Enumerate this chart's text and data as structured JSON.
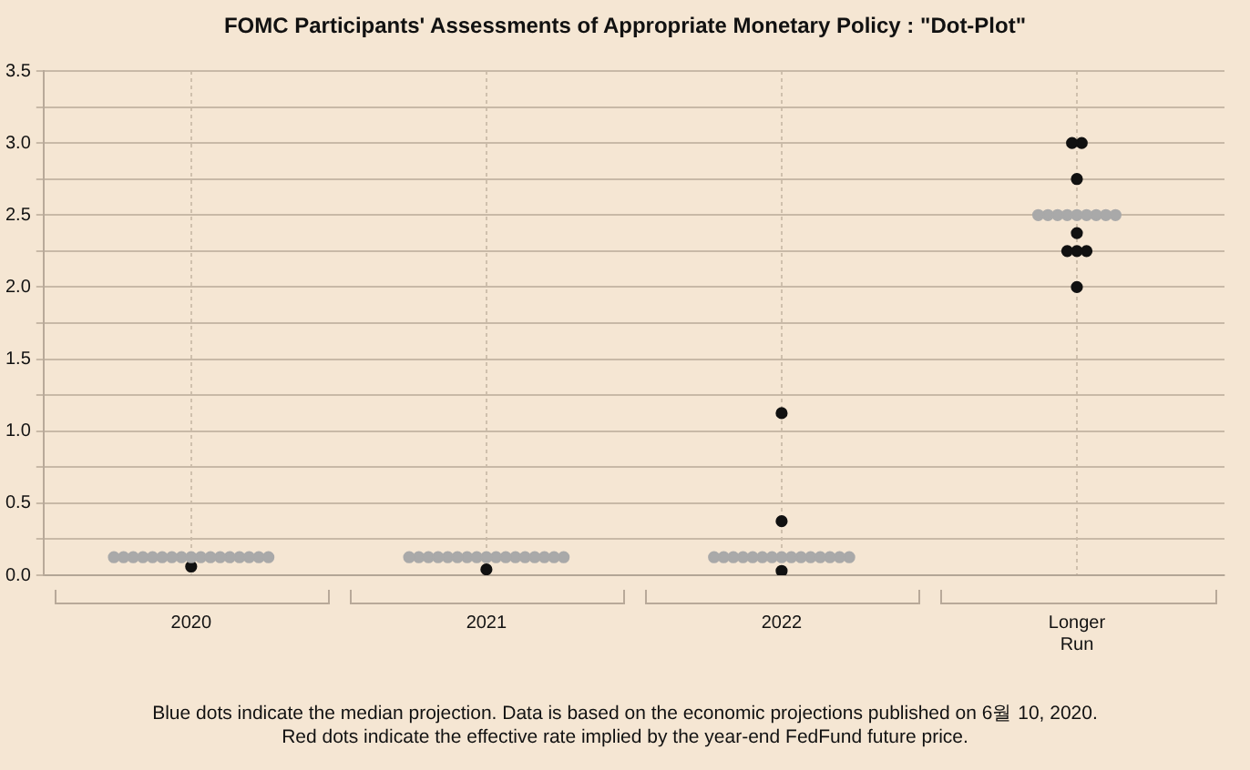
{
  "chart_data": {
    "type": "scatter",
    "title": "FOMC Participants' Assessments of Appropriate Monetary Policy : \"Dot-Plot\"",
    "categories": [
      "2020",
      "2021",
      "2022",
      "Longer Run"
    ],
    "series": [
      {
        "color": "#a9a9a9",
        "values": [
          0.125,
          0.125,
          0.125,
          2.5
        ]
      },
      {
        "color": "#a9a9a9",
        "values": [
          0.125,
          0.125,
          0.125,
          2.5
        ]
      },
      {
        "color": "#a9a9a9",
        "values": [
          0.125,
          0.125,
          0.125,
          2.5
        ]
      },
      {
        "color": "#a9a9a9",
        "values": [
          0.125,
          0.125,
          0.125,
          2.5
        ]
      },
      {
        "color": "#a9a9a9",
        "values": [
          0.125,
          0.125,
          0.125,
          2.5
        ]
      },
      {
        "color": "#a9a9a9",
        "values": [
          0.125,
          0.125,
          0.125,
          2.5
        ]
      },
      {
        "color": "#a9a9a9",
        "values": [
          0.125,
          0.125,
          0.125,
          2.5
        ]
      },
      {
        "color": "#a9a9a9",
        "values": [
          0.125,
          0.125,
          0.125,
          2.5
        ]
      },
      {
        "color": "#a9a9a9",
        "values": [
          0.125,
          0.125,
          0.125,
          2.5
        ]
      },
      {
        "color": "#a9a9a9",
        "values": [
          0.125,
          0.125,
          0.125,
          null
        ]
      },
      {
        "color": "#a9a9a9",
        "values": [
          0.125,
          0.125,
          0.125,
          null
        ]
      },
      {
        "color": "#a9a9a9",
        "values": [
          0.125,
          0.125,
          0.125,
          null
        ]
      },
      {
        "color": "#a9a9a9",
        "values": [
          0.125,
          0.125,
          0.125,
          null
        ]
      },
      {
        "color": "#a9a9a9",
        "values": [
          0.125,
          0.125,
          0.125,
          null
        ]
      },
      {
        "color": "#a9a9a9",
        "values": [
          0.125,
          0.125,
          0.125,
          null
        ]
      },
      {
        "color": "#a9a9a9",
        "values": [
          0.125,
          0.125,
          null,
          null
        ]
      },
      {
        "color": "#a9a9a9",
        "values": [
          0.125,
          0.125,
          null,
          null
        ]
      },
      {
        "color": "#111111",
        "values": [
          0.06,
          0.04,
          0.03,
          2.0
        ]
      },
      {
        "color": "#111111",
        "values": [
          null,
          null,
          0.375,
          2.25
        ]
      },
      {
        "color": "#111111",
        "values": [
          null,
          null,
          1.125,
          2.25
        ]
      },
      {
        "color": "#111111",
        "values": [
          null,
          null,
          null,
          2.25
        ]
      },
      {
        "color": "#111111",
        "values": [
          null,
          null,
          null,
          2.375
        ]
      },
      {
        "color": "#111111",
        "values": [
          null,
          null,
          null,
          2.75
        ]
      },
      {
        "color": "#111111",
        "values": [
          null,
          null,
          null,
          3.0
        ]
      },
      {
        "color": "#111111",
        "values": [
          null,
          null,
          null,
          3.0
        ]
      }
    ],
    "ylim": [
      0,
      3.5
    ],
    "yticks": [
      {
        "value": 0,
        "label": "0.0"
      },
      {
        "value": 0.25,
        "label": null
      },
      0.5,
      {
        "value": 0.75,
        "label": null
      },
      {
        "value": 1,
        "label": "1.0"
      },
      {
        "value": 1.25,
        "label": null
      },
      1.5,
      {
        "value": 1.75,
        "label": null
      },
      {
        "value": 2,
        "label": "2.0"
      },
      {
        "value": 2.25,
        "label": null
      },
      2.5,
      {
        "value": 2.75,
        "label": null
      },
      {
        "value": 3,
        "label": "3.0"
      },
      {
        "value": 3.25,
        "label": null
      },
      3.5
    ],
    "grid": true,
    "marker": "circle",
    "legend": false,
    "annotations": [
      "Blue dots indicate the median projection. Data is based on the economic projections published on 6월 10, 2020.",
      "Red dots indicate the effective rate implied by the year-end FedFund future price."
    ]
  }
}
